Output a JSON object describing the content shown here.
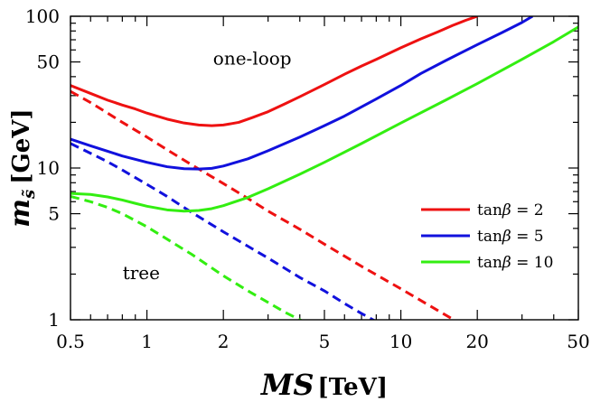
{
  "chart_data": {
    "type": "line",
    "title": "",
    "xlabel": "MS",
    "xlabel_unit": "[TeV]",
    "ylabel": "m",
    "ylabel_sub": "s̃",
    "ylabel_unit": "[GeV]",
    "x_scale": "log",
    "y_scale": "log",
    "xlim": [
      0.5,
      50
    ],
    "ylim": [
      1,
      100
    ],
    "x_ticks": [
      {
        "value": 0.5,
        "label": "0.5"
      },
      {
        "value": 1,
        "label": "1"
      },
      {
        "value": 2,
        "label": "2"
      },
      {
        "value": 5,
        "label": "5"
      },
      {
        "value": 10,
        "label": "10"
      },
      {
        "value": 20,
        "label": "20"
      },
      {
        "value": 50,
        "label": "50"
      }
    ],
    "y_ticks": [
      {
        "value": 1,
        "label": "1"
      },
      {
        "value": 5,
        "label": "5"
      },
      {
        "value": 10,
        "label": "10"
      },
      {
        "value": 50,
        "label": "50"
      },
      {
        "value": 100,
        "label": "100"
      }
    ],
    "annotations": [
      {
        "text": "one-loop",
        "x": 2.6,
        "y": 48
      },
      {
        "text": "tree",
        "x": 0.95,
        "y": 1.85
      }
    ],
    "legend_position": "middle-right",
    "series": [
      {
        "name": "tanβ = 2",
        "legend_prefix": "tan",
        "legend_greek": "β",
        "legend_suffix": " = 2",
        "color": "#ee1111",
        "style": "solid",
        "x": [
          0.5,
          0.6,
          0.7,
          0.8,
          0.9,
          1.0,
          1.2,
          1.4,
          1.6,
          1.8,
          2.0,
          2.3,
          2.6,
          3.0,
          3.5,
          4.0,
          5.0,
          6.0,
          7.0,
          8.0,
          10.0,
          12.0,
          14.0,
          16.0,
          18.0,
          20.0
        ],
        "y": [
          35,
          31,
          28,
          26,
          24.5,
          23,
          21,
          19.8,
          19.2,
          19,
          19.2,
          20,
          21.5,
          23.5,
          26.5,
          29.5,
          35.5,
          41.5,
          47,
          52,
          62,
          71,
          79,
          87,
          94,
          100
        ]
      },
      {
        "name": "tanβ = 2 tree",
        "color": "#ee1111",
        "style": "dashed",
        "x": [
          0.5,
          0.6,
          0.7,
          0.8,
          1.0,
          1.2,
          1.5,
          2.0,
          2.5,
          3.0,
          4.0,
          5.0,
          7.0,
          10.0,
          14.0,
          18.0
        ],
        "y": [
          32,
          27,
          23,
          20,
          16,
          13.2,
          10.5,
          7.9,
          6.3,
          5.2,
          3.95,
          3.15,
          2.25,
          1.6,
          1.15,
          0.9
        ]
      },
      {
        "name": "tanβ = 5",
        "legend_prefix": "tan",
        "legend_greek": "β",
        "legend_suffix": " = 5",
        "color": "#1111dd",
        "style": "solid",
        "x": [
          0.5,
          0.6,
          0.7,
          0.8,
          1.0,
          1.2,
          1.4,
          1.6,
          1.8,
          2.0,
          2.5,
          3.0,
          4.0,
          5.0,
          6.0,
          8.0,
          10.0,
          12.0,
          15.0,
          20.0,
          25.0,
          30.0,
          33.0
        ],
        "y": [
          15.5,
          14,
          12.9,
          12,
          10.9,
          10.2,
          9.9,
          9.85,
          9.95,
          10.3,
          11.5,
          13,
          16,
          19,
          22,
          28.5,
          35,
          42,
          51,
          65,
          78,
          91,
          100
        ]
      },
      {
        "name": "tanβ = 5 tree",
        "color": "#1111dd",
        "style": "dashed",
        "x": [
          0.5,
          0.6,
          0.7,
          0.8,
          1.0,
          1.2,
          1.5,
          2.0,
          2.5,
          3.0,
          4.0,
          5.0,
          6.0,
          7.0,
          8.5
        ],
        "y": [
          14.5,
          12.5,
          11,
          9.7,
          7.8,
          6.5,
          5.1,
          3.8,
          3.05,
          2.55,
          1.9,
          1.55,
          1.28,
          1.1,
          0.92
        ]
      },
      {
        "name": "tanβ = 10",
        "legend_prefix": "tan",
        "legend_greek": "β",
        "legend_suffix": " = 10",
        "color": "#33ee11",
        "style": "solid",
        "x": [
          0.5,
          0.6,
          0.7,
          0.8,
          0.9,
          1.0,
          1.2,
          1.4,
          1.6,
          1.8,
          2.0,
          2.5,
          3.0,
          4.0,
          5.0,
          7.0,
          10.0,
          15.0,
          20.0,
          30.0,
          40.0,
          50.0
        ],
        "y": [
          6.8,
          6.7,
          6.45,
          6.15,
          5.85,
          5.6,
          5.3,
          5.2,
          5.25,
          5.4,
          5.65,
          6.4,
          7.3,
          9.1,
          10.9,
          14.5,
          19.8,
          28,
          36,
          52,
          68,
          85
        ]
      },
      {
        "name": "tanβ = 10 tree",
        "color": "#33ee11",
        "style": "dashed",
        "x": [
          0.5,
          0.6,
          0.7,
          0.8,
          1.0,
          1.2,
          1.5,
          2.0,
          2.5,
          3.0,
          3.5,
          4.0,
          4.5
        ],
        "y": [
          6.5,
          6.0,
          5.5,
          5.0,
          4.1,
          3.4,
          2.7,
          1.95,
          1.55,
          1.3,
          1.12,
          1.0,
          0.9
        ]
      }
    ]
  }
}
